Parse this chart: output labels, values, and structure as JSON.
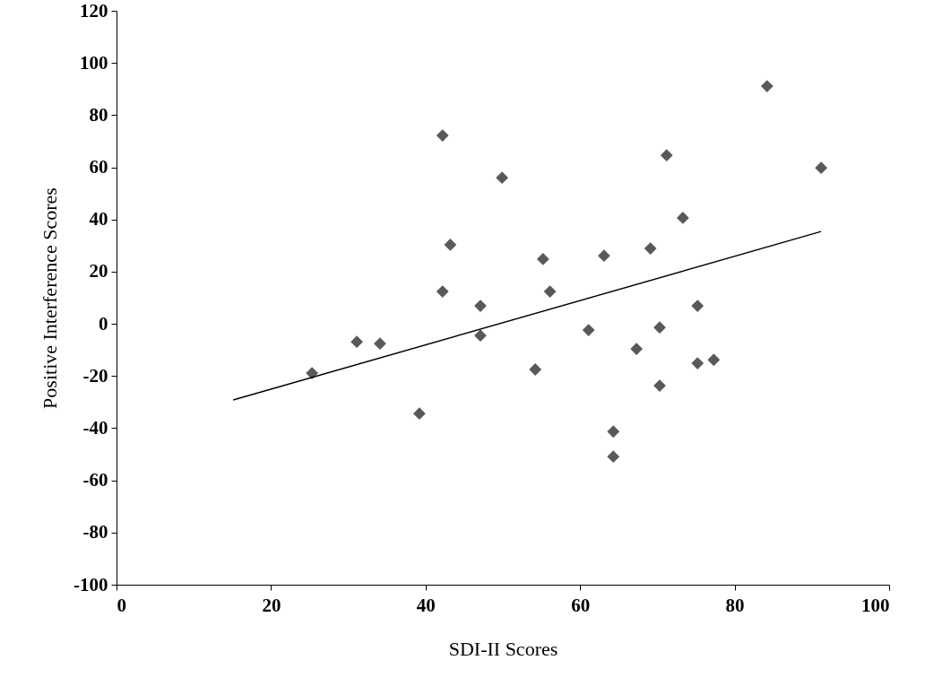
{
  "chart_data": {
    "type": "scatter",
    "xlabel": "SDI-II Scores",
    "ylabel": "Positive Interference Scores",
    "xlim": [
      0,
      100
    ],
    "xticks": [
      0,
      20,
      40,
      60,
      80,
      100
    ],
    "ylim": [
      -100,
      120
    ],
    "yticks": [
      -100,
      -80,
      -60,
      -40,
      -20,
      0,
      20,
      40,
      60,
      80,
      100,
      120
    ],
    "grid": false,
    "series": [
      {
        "marker": "diamond",
        "color": "#595959",
        "x": [
          25.3,
          31.1,
          34.1,
          39.2,
          42.2,
          42.2,
          43.2,
          47.1,
          47.1,
          49.9,
          54.2,
          55.2,
          56.1,
          61.1,
          63.1,
          64.3,
          64.3,
          67.3,
          69.1,
          70.3,
          70.3,
          71.2,
          73.3,
          75.2,
          75.2,
          77.3,
          84.2,
          91.2
        ],
        "values": [
          -18.9,
          -6.9,
          -7.6,
          -34.4,
          72.2,
          12.4,
          30.3,
          6.9,
          -4.5,
          56,
          -17.5,
          24.8,
          12.4,
          -2.4,
          26.1,
          -41.3,
          -50.9,
          -9.6,
          28.9,
          -1.4,
          -23.7,
          64.6,
          40.6,
          6.9,
          -15.1,
          -13.8,
          91.1,
          59.8
        ]
      },
      {
        "type": "line",
        "color": "#000000",
        "line_style": "solid",
        "x": [
          15.1,
          91.2
        ],
        "values": [
          -29.2,
          35.4
        ]
      }
    ]
  }
}
